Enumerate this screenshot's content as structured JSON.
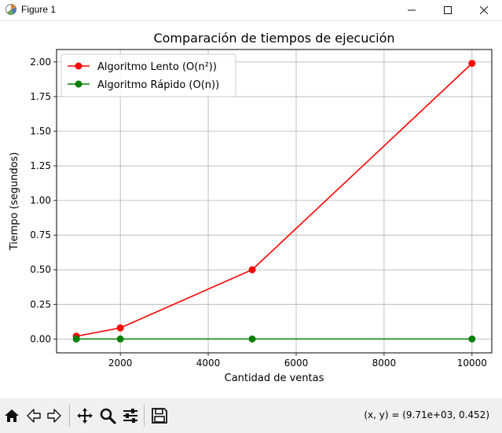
{
  "window": {
    "title": "Figure 1",
    "controls": [
      "minimize",
      "maximize",
      "close"
    ]
  },
  "chart_data": {
    "type": "line",
    "title": "Comparación de tiempos de ejecución",
    "xlabel": "Cantidad de ventas",
    "ylabel": "Tiempo (segundos)",
    "x": [
      1000,
      2000,
      5000,
      10000
    ],
    "series": [
      {
        "name": "Algoritmo Lento (O(n²))",
        "color": "#ff0000",
        "marker": "circle",
        "values": [
          0.02,
          0.08,
          0.5,
          1.99
        ]
      },
      {
        "name": "Algoritmo Rápido (O(n))",
        "color": "#008000",
        "marker": "circle",
        "values": [
          0.0,
          0.0,
          0.0,
          0.0
        ]
      }
    ],
    "xlim": [
      550,
      10450
    ],
    "ylim": [
      -0.1,
      2.09
    ],
    "xticks": [
      2000,
      4000,
      6000,
      8000,
      10000
    ],
    "xtick_labels": [
      "2000",
      "4000",
      "6000",
      "8000",
      "10000"
    ],
    "yticks": [
      0.0,
      0.25,
      0.5,
      0.75,
      1.0,
      1.25,
      1.5,
      1.75,
      2.0
    ],
    "ytick_labels": [
      "0.00",
      "0.25",
      "0.50",
      "0.75",
      "1.00",
      "1.25",
      "1.50",
      "1.75",
      "2.00"
    ],
    "grid": true,
    "legend_position": "upper-left"
  },
  "toolbar": {
    "buttons": [
      {
        "name": "home-button",
        "icon": "home-icon"
      },
      {
        "name": "back-button",
        "icon": "arrow-left-icon"
      },
      {
        "name": "forward-button",
        "icon": "arrow-right-icon"
      },
      {
        "name": "pan-button",
        "icon": "move-icon"
      },
      {
        "name": "zoom-button",
        "icon": "magnifier-icon"
      },
      {
        "name": "subplots-button",
        "icon": "sliders-icon"
      },
      {
        "name": "save-button",
        "icon": "floppy-disk-icon"
      }
    ],
    "coords": "(x, y) = (9.71e+03, 0.452)"
  }
}
